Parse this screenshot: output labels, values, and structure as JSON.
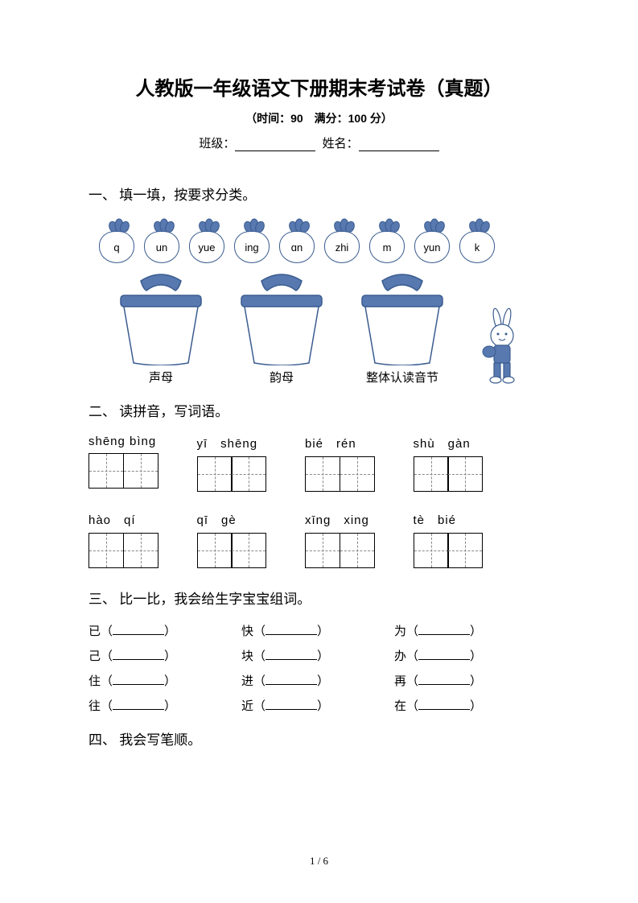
{
  "header": {
    "title": "人教版一年级语文下册期末考试卷（真题）",
    "subtitle": "（时间：90　满分：100 分）",
    "class_label": "班级：",
    "name_label": "姓名："
  },
  "section1": {
    "heading": "一、 填一填，按要求分类。",
    "radishes": [
      "q",
      "un",
      "yue",
      "ing",
      "ɑn",
      "zhi",
      "m",
      "yun",
      "k"
    ],
    "baskets": [
      "声母",
      "韵母",
      "整体认读音节"
    ],
    "colors": {
      "outline": "#3a5c8f",
      "fill_dark": "#5878b0",
      "fill_light": "#a8bde0"
    }
  },
  "section2": {
    "heading": "二、 读拼音，写词语。",
    "row1": [
      {
        "pinyin": "shēng bìng"
      },
      {
        "pinyin": "yī　shēng"
      },
      {
        "pinyin": "bié　rén"
      },
      {
        "pinyin": "shù　gàn"
      }
    ],
    "row2": [
      {
        "pinyin": "hào　qí"
      },
      {
        "pinyin": "qī　gè"
      },
      {
        "pinyin": "xīng　xing"
      },
      {
        "pinyin": "tè　bié"
      }
    ]
  },
  "section3": {
    "heading": "三、 比一比，我会给生字宝宝组词。",
    "rows": [
      [
        "已",
        "快",
        "为"
      ],
      [
        "己",
        "块",
        "办"
      ],
      [
        "住",
        "进",
        "再"
      ],
      [
        "往",
        "近",
        "在"
      ]
    ]
  },
  "section4": {
    "heading": "四、 我会写笔顺。"
  },
  "footer": {
    "page": "1 / 6"
  }
}
